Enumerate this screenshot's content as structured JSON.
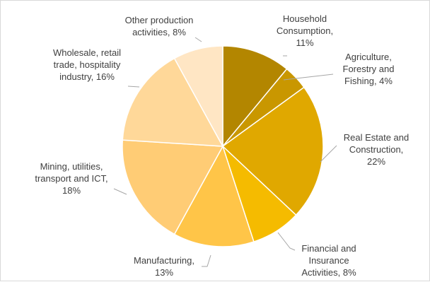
{
  "chart_data": {
    "type": "pie",
    "title": "",
    "start_angle_deg": 0,
    "direction": "clockwise",
    "slices": [
      {
        "lines": [
          "Household",
          "Consumption,",
          "11%"
        ],
        "value": 11,
        "color": "#b38600"
      },
      {
        "lines": [
          "Agriculture,",
          "Forestry and",
          "Fishing, 4%"
        ],
        "value": 4,
        "color": "#c99700"
      },
      {
        "lines": [
          "Real Estate and",
          "Construction,",
          "22%"
        ],
        "value": 22,
        "color": "#e0a800"
      },
      {
        "lines": [
          "Financial and",
          "Insurance",
          "Activities, 8%"
        ],
        "value": 8,
        "color": "#f5bb00"
      },
      {
        "lines": [
          "Manufacturing,",
          "13%"
        ],
        "value": 13,
        "color": "#ffc548"
      },
      {
        "lines": [
          "Mining, utilities,",
          "transport and ICT,",
          "18%"
        ],
        "value": 18,
        "color": "#ffcc75"
      },
      {
        "lines": [
          "Wholesale, retail",
          "trade, hospitality",
          "industry, 16%"
        ],
        "value": 16,
        "color": "#ffd899"
      },
      {
        "lines": [
          "Other production",
          "activities, 8%"
        ],
        "value": 8,
        "color": "#ffe6c4"
      }
    ]
  }
}
